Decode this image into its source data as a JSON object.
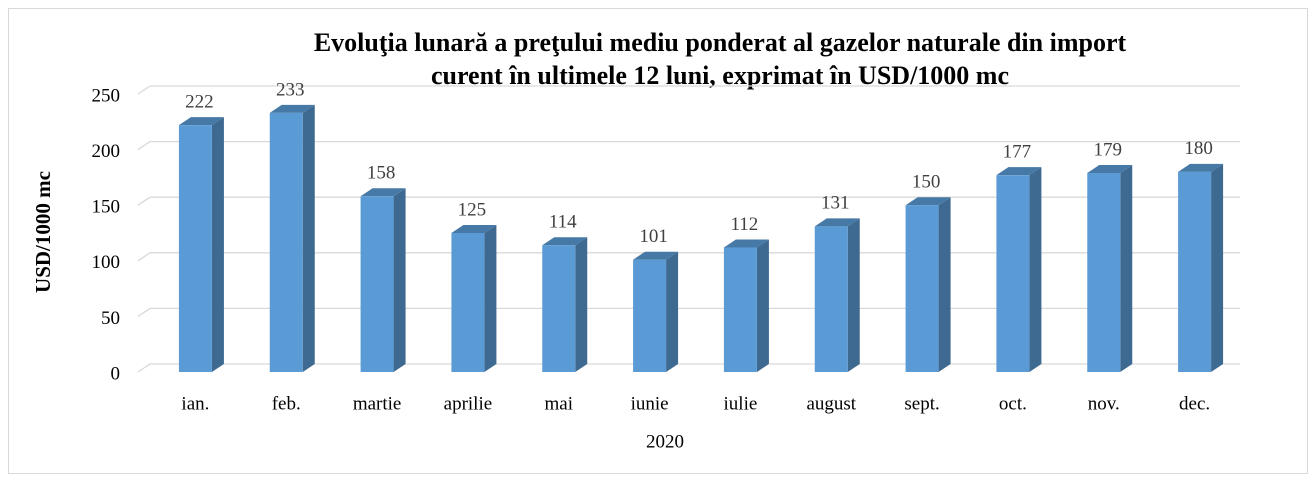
{
  "chart_data": {
    "type": "bar3d",
    "title": [
      "Evoluţia lunară a preţului mediu ponderat al gazelor naturale din import",
      "curent în ultimele 12 luni, exprimat în USD/1000 mc"
    ],
    "y_label": "USD/1000 mc",
    "x_label": "2020",
    "categories": [
      "ian.",
      "feb.",
      "martie",
      "aprilie",
      "mai",
      "iunie",
      "iulie",
      "august",
      "sept.",
      "oct.",
      "nov.",
      "dec."
    ],
    "values": [
      222,
      233,
      158,
      125,
      114,
      101,
      112,
      131,
      150,
      177,
      179,
      180
    ],
    "color": "#5b9bd5",
    "ylim": [
      0,
      250
    ],
    "yticks": [
      0,
      50,
      100,
      150,
      200,
      250
    ],
    "grid": true
  }
}
